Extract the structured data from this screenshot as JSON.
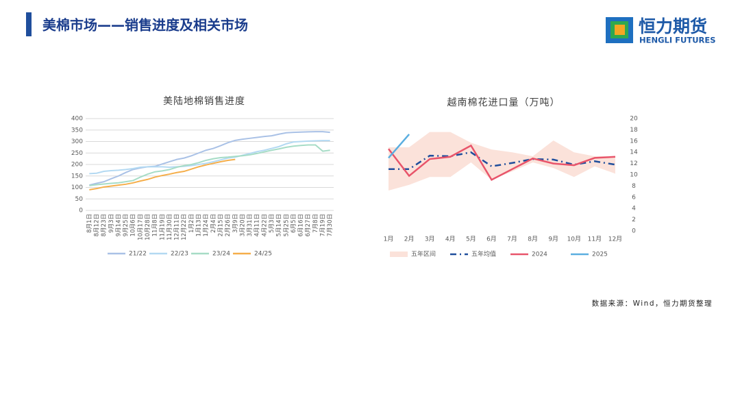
{
  "header": {
    "title": "美棉市场——销售进度及相关市场",
    "logo_cn": "恒力期货",
    "logo_en": "HENGLI FUTURES"
  },
  "source": "数据来源：Wind，恒力期货整理",
  "chart_data": [
    {
      "type": "line",
      "title": "美陆地棉销售进度",
      "categories": [
        "8月1日",
        "8月12日",
        "8月23日",
        "9月3日",
        "9月14日",
        "9月25日",
        "10月6日",
        "10月17日",
        "10月28日",
        "11月8日",
        "11月19日",
        "11月30日",
        "12月11日",
        "12月22日",
        "1月2日",
        "1月13日",
        "1月24日",
        "2月4日",
        "2月15日",
        "2月26日",
        "3月9日",
        "3月20日",
        "3月31日",
        "4月11日",
        "4月22日",
        "5月3日",
        "5月14日",
        "5月25日",
        "6月5日",
        "6月16日",
        "6月27日",
        "7月8日",
        "7月19日",
        "7月30日"
      ],
      "series": [
        {
          "name": "21/22",
          "color": "#a9c1e6",
          "values": [
            110,
            118,
            125,
            138,
            150,
            165,
            178,
            185,
            190,
            192,
            202,
            212,
            222,
            228,
            238,
            250,
            262,
            270,
            282,
            295,
            305,
            310,
            314,
            318,
            322,
            325,
            332,
            338,
            340,
            341,
            342,
            343,
            343,
            340
          ]
        },
        {
          "name": "22/23",
          "color": "#b3d9f2",
          "values": [
            160,
            162,
            170,
            173,
            175,
            178,
            182,
            188,
            190,
            190,
            190,
            188,
            190,
            192,
            195,
            200,
            205,
            212,
            220,
            228,
            232,
            240,
            248,
            256,
            262,
            270,
            278,
            290,
            298,
            300,
            302,
            303,
            304,
            304
          ]
        },
        {
          "name": "23/24",
          "color": "#a6dcc6",
          "values": [
            108,
            112,
            115,
            118,
            120,
            125,
            130,
            145,
            158,
            168,
            172,
            178,
            188,
            195,
            200,
            208,
            218,
            225,
            230,
            232,
            235,
            238,
            242,
            248,
            255,
            262,
            268,
            275,
            280,
            283,
            285,
            285,
            258,
            262
          ]
        },
        {
          "name": "24/25",
          "color": "#f5ae4a",
          "values": [
            90,
            95,
            102,
            106,
            110,
            114,
            120,
            128,
            135,
            145,
            152,
            158,
            165,
            170,
            180,
            190,
            198,
            205,
            212,
            218,
            222,
            null,
            null,
            null,
            null,
            null,
            null,
            null,
            null,
            null,
            null,
            null,
            null,
            null
          ]
        }
      ],
      "ylim": [
        0,
        400
      ],
      "yticks": [
        0,
        50,
        100,
        150,
        200,
        250,
        300,
        350,
        400
      ],
      "grid": true
    },
    {
      "type": "line",
      "title": "越南棉花进口量（万吨）",
      "categories": [
        "1月",
        "2月",
        "3月",
        "4月",
        "5月",
        "6月",
        "7月",
        "8月",
        "9月",
        "10月",
        "11月",
        "12月"
      ],
      "series": [
        {
          "name": "五年区间",
          "color": "#fbe2da",
          "axis": "y2",
          "upper": [
            14.9,
            14.9,
            17.6,
            17.6,
            15.7,
            14.5,
            14.0,
            13.3,
            16.1,
            14.0,
            13.3,
            13.3
          ],
          "lower": [
            7.2,
            8.2,
            9.6,
            9.6,
            12.2,
            9.1,
            10.6,
            12.2,
            11.2,
            9.6,
            11.5,
            10.2
          ]
        },
        {
          "name": "五年均值",
          "color": "#1f4e9c",
          "axis": "y2",
          "style": "dash-dot",
          "values": [
            11.0,
            11.0,
            13.4,
            13.3,
            14.0,
            11.5,
            12.1,
            12.8,
            12.7,
            11.8,
            12.4,
            11.8
          ]
        },
        {
          "name": "2024",
          "color": "#e8546a",
          "axis": "y2",
          "values": [
            14.6,
            9.8,
            12.8,
            13.2,
            15.2,
            9.1,
            11.0,
            12.9,
            12.0,
            11.7,
            13.0,
            13.2
          ]
        },
        {
          "name": "2025",
          "color": "#5aaee0",
          "axis": "y2",
          "values": [
            13.0,
            17.2,
            null,
            null,
            null,
            null,
            null,
            null,
            null,
            null,
            null,
            null
          ]
        }
      ],
      "y2lim": [
        0,
        20
      ],
      "y2ticks": [
        0,
        2,
        4,
        6,
        8,
        10,
        12,
        14,
        16,
        18,
        20
      ],
      "grid": false
    }
  ]
}
